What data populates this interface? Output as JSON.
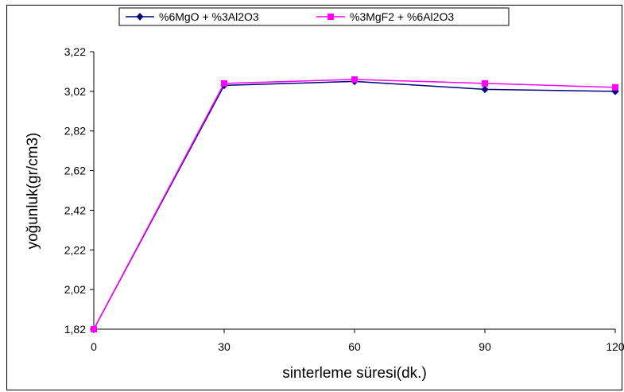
{
  "chart_data": {
    "type": "line",
    "x": [
      0,
      30,
      60,
      90,
      120
    ],
    "x_tick_labels": [
      "0",
      "30",
      "60",
      "90",
      "120"
    ],
    "y_tick_labels": [
      "1,82",
      "2,02",
      "2,22",
      "2,42",
      "2,62",
      "2,82",
      "3,02",
      "3,22"
    ],
    "ylim": [
      1.82,
      3.22
    ],
    "xlim": [
      0,
      120
    ],
    "xlabel": "sinterleme süresi(dk.)",
    "ylabel": "yoğunluk(gr/cm3)",
    "grid": false,
    "legend_position": "top",
    "series": [
      {
        "name": "%6MgO + %3Al2O3",
        "values": [
          1.82,
          3.05,
          3.07,
          3.03,
          3.02
        ],
        "color": "#000080",
        "marker": "diamond"
      },
      {
        "name": "%3MgF2 + %6Al2O3",
        "values": [
          1.82,
          3.06,
          3.08,
          3.06,
          3.04
        ],
        "color": "#ff00ff",
        "marker": "square"
      }
    ]
  }
}
